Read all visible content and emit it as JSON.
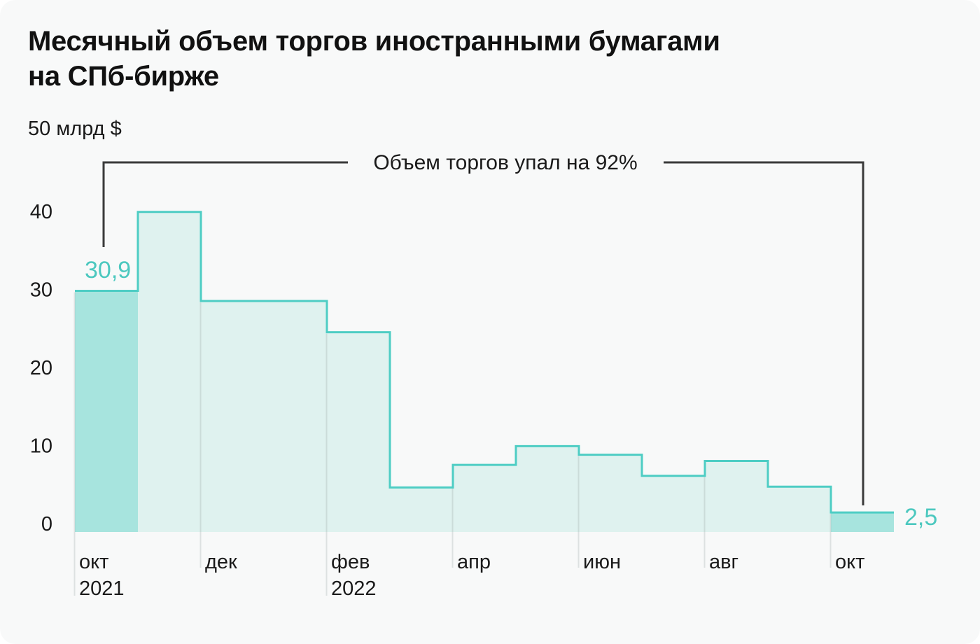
{
  "chart_data": {
    "type": "area",
    "subtype": "step-area",
    "title": "Месячный объем торгов иностранными бумагами на СПб-бирже",
    "title_lines": [
      "Месячный объем торгов иностранными бумагами",
      "на СПб-бирже"
    ],
    "unit_label": "50 млрд $",
    "annotation": "Объем торгов упал на 92%",
    "months": [
      "окт 2021",
      "ноя 2021",
      "дек 2021",
      "янв 2022",
      "фев 2022",
      "мар 2022",
      "апр 2022",
      "май 2022",
      "июн 2022",
      "июл 2022",
      "авг 2022",
      "сен 2022",
      "окт 2022"
    ],
    "values": [
      30.9,
      41,
      29.6,
      29.6,
      25.6,
      5.7,
      8.6,
      11,
      9.9,
      7.2,
      9.1,
      5.8,
      2.5
    ],
    "highlighted_indices": [
      0,
      12
    ],
    "point_labels": {
      "first": "30,9",
      "last": "2,5"
    },
    "x_ticks": [
      {
        "month": "окт",
        "year": "2021"
      },
      {
        "month": "дек"
      },
      {
        "month": "фев",
        "year": "2022"
      },
      {
        "month": "апр"
      },
      {
        "month": "июн"
      },
      {
        "month": "авг"
      },
      {
        "month": "окт"
      }
    ],
    "y_ticks": [
      0,
      10,
      20,
      30,
      40
    ],
    "ylim": [
      0,
      50
    ],
    "grid": "vertical tick lines only",
    "legend": "none",
    "colors": {
      "background": "#f8f9f9",
      "outline_stroke": "#4ecdc4",
      "fill_light": "#dff2ef",
      "fill_dark": "#a7e4de",
      "value_label": "#4cc8bf",
      "annotation_line": "#3a3a3a",
      "text": "#1a1a1a",
      "grid_line": "#9aa6a4"
    }
  }
}
